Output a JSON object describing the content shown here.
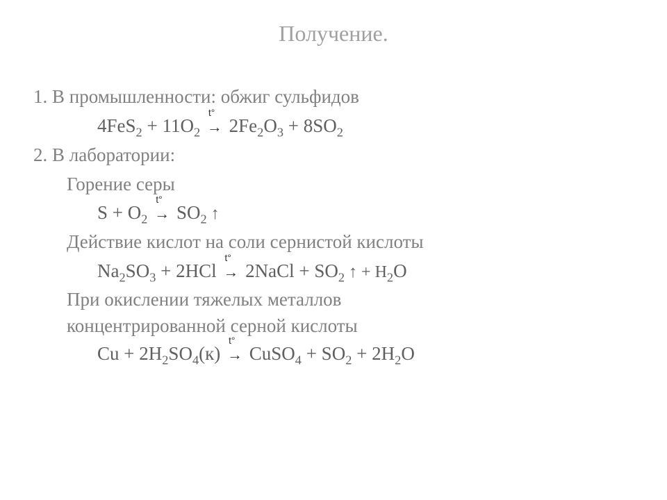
{
  "title": "Получение.",
  "item1": {
    "heading": "1.  В промышленности: обжиг сульфидов",
    "eq_pre": "4FeS",
    "eq_sub1": "2",
    "eq_mid1": " + 11O",
    "eq_sub2": "2",
    "eq_mid2": " ",
    "eq_mid3": " 2Fe",
    "eq_sub3": "2",
    "eq_mid4": "O",
    "eq_sub4": "3",
    "eq_mid5": " + 8SO",
    "eq_sub5": "2"
  },
  "item2_heading": "2.  В лаборатории:",
  "sub1": {
    "label": "Горение серы",
    "eq_a": "S + O",
    "eq_sub1": "2",
    "eq_b": " ",
    "eq_c": " SO",
    "eq_sub2": "2",
    "eq_up": " ↑"
  },
  "sub2": {
    "label": "Действие кислот на соли сернистой кислоты",
    "eq_a": "Na",
    "eq_s1": "2",
    "eq_b": "SO",
    "eq_s2": "3",
    "eq_c": " + 2HCl ",
    "eq_d": " 2NaCl + SO",
    "eq_s3": "2",
    "eq_e": " ↑  + H",
    "eq_s4": "2",
    "eq_f": "O"
  },
  "sub3": {
    "label1": "При окислении тяжелых металлов",
    "label2": "концентрированной серной кислоты",
    "eq_a": "Cu + 2H",
    "eq_s1": "2",
    "eq_b": "SO",
    "eq_s2": "4",
    "eq_c": "(к) ",
    "eq_d": " CuSO",
    "eq_s3": "4",
    "eq_e": " + SO",
    "eq_s4": "2",
    "eq_f": " + 2H",
    "eq_s5": "2",
    "eq_g": "O"
  },
  "temp_symbol": "t°",
  "arrow": "→",
  "colors": {
    "title": "#a0a0a0",
    "body": "#808080",
    "equation": "#606060",
    "background": "#ffffff"
  },
  "font_sizes": {
    "title": 32,
    "body": 27
  }
}
